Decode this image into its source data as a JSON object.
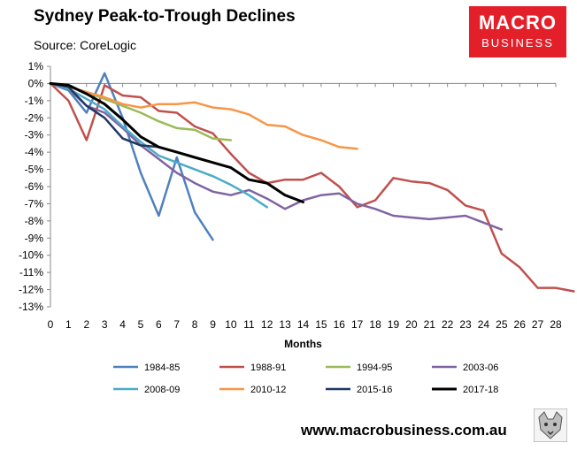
{
  "header": {
    "title": "Sydney Peak-to-Trough Declines",
    "source": "Source: CoreLogic"
  },
  "logo": {
    "line1": "MACRO",
    "line2": "BUSINESS"
  },
  "footer": {
    "url": "www.macrobusiness.com.au"
  },
  "chart_data": {
    "type": "line",
    "title": "Sydney Peak-to-Trough Declines",
    "xlabel": "Months",
    "ylabel": "",
    "xlim": [
      0,
      28
    ],
    "ylim": [
      -13,
      1
    ],
    "x_ticks": [
      0,
      1,
      2,
      3,
      4,
      5,
      6,
      7,
      8,
      9,
      10,
      11,
      12,
      13,
      14,
      15,
      16,
      17,
      18,
      19,
      20,
      21,
      22,
      23,
      24,
      25,
      26,
      27,
      28
    ],
    "y_ticks": [
      1,
      0,
      -1,
      -2,
      -3,
      -4,
      -5,
      -6,
      -7,
      -8,
      -9,
      -10,
      -11,
      -12,
      -13
    ],
    "y_tick_labels": [
      "1%",
      "0%",
      "-1%",
      "-2%",
      "-3%",
      "-4%",
      "-5%",
      "-6%",
      "-7%",
      "-8%",
      "-9%",
      "-10%",
      "-11%",
      "-12%",
      "-13%"
    ],
    "grid": false,
    "legend_position": "bottom",
    "series": [
      {
        "name": "1984-85",
        "color": "#4f81bd",
        "width": 2.5,
        "values": [
          0,
          -0.4,
          -1.7,
          0.6,
          -2.0,
          -5.2,
          -7.7,
          -4.3,
          -7.5,
          -9.1
        ]
      },
      {
        "name": "1988-91",
        "color": "#c0504d",
        "width": 2.5,
        "values": [
          0,
          -1.0,
          -3.3,
          -0.1,
          -0.7,
          -0.8,
          -1.6,
          -1.7,
          -2.5,
          -2.9,
          -4.1,
          -5.2,
          -5.8,
          -5.6,
          -5.6,
          -5.2,
          -6.0,
          -7.2,
          -6.8,
          -5.5,
          -5.7,
          -5.8,
          -6.2,
          -7.1,
          -7.4,
          -9.9,
          -10.7,
          -11.9,
          -11.9,
          -12.1
        ]
      },
      {
        "name": "1994-95",
        "color": "#9bbb59",
        "width": 2.5,
        "values": [
          0,
          -0.2,
          -0.5,
          -0.9,
          -1.3,
          -1.7,
          -2.2,
          -2.6,
          -2.7,
          -3.2,
          -3.3
        ]
      },
      {
        "name": "2003-06",
        "color": "#8064a2",
        "width": 2.5,
        "values": [
          0,
          -0.3,
          -1.3,
          -1.7,
          -2.6,
          -3.6,
          -4.4,
          -5.2,
          -5.8,
          -6.3,
          -6.5,
          -6.2,
          -6.7,
          -7.3,
          -6.8,
          -6.5,
          -6.4,
          -7.0,
          -7.3,
          -7.7,
          -7.8,
          -7.9,
          -7.8,
          -7.7,
          -8.1,
          -8.5
        ]
      },
      {
        "name": "2008-09",
        "color": "#4bacc6",
        "width": 2.5,
        "values": [
          0,
          -0.3,
          -0.9,
          -1.5,
          -2.5,
          -3.4,
          -4.2,
          -4.6,
          -5.0,
          -5.4,
          -5.9,
          -6.5,
          -7.2
        ]
      },
      {
        "name": "2010-12",
        "color": "#f79646",
        "width": 2.5,
        "values": [
          0,
          -0.2,
          -0.5,
          -0.8,
          -1.2,
          -1.4,
          -1.2,
          -1.2,
          -1.1,
          -1.4,
          -1.5,
          -1.8,
          -2.4,
          -2.5,
          -3.0,
          -3.3,
          -3.7,
          -3.8
        ]
      },
      {
        "name": "2015-16",
        "color": "#1f3864",
        "width": 2.5,
        "values": [
          0,
          -0.2,
          -1.3,
          -2.0,
          -3.2,
          -3.6,
          -3.7
        ]
      },
      {
        "name": "2017-18",
        "color": "#000000",
        "width": 3,
        "values": [
          0,
          -0.1,
          -0.6,
          -1.2,
          -2.1,
          -3.1,
          -3.7,
          -4.0,
          -4.3,
          -4.6,
          -4.9,
          -5.6,
          -5.8,
          -6.5,
          -6.9
        ]
      }
    ]
  }
}
